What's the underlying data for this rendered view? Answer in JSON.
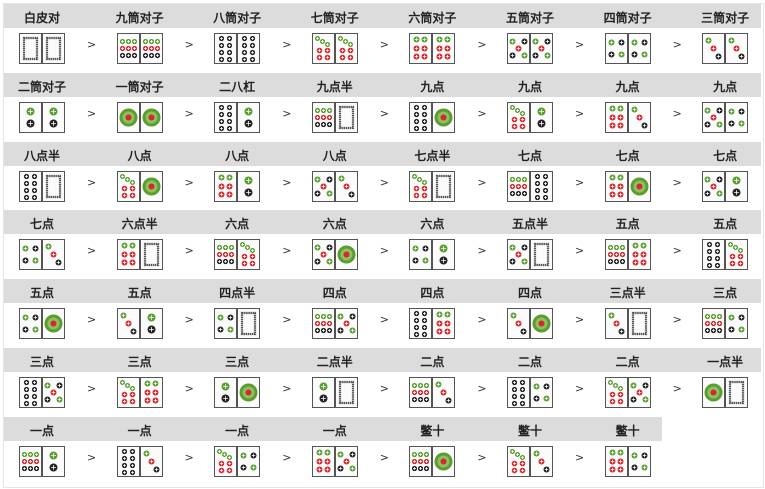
{
  "colors": {
    "green": "#5a9e2f",
    "red": "#d8262c",
    "black": "#222222",
    "header_bg": "#dcdcdc",
    "tile_border": "#555555"
  },
  "arrow": ">",
  "cells": [
    {
      "label": "白皮对",
      "tiles": [
        0,
        0
      ]
    },
    {
      "label": "九筒对子",
      "tiles": [
        9,
        9
      ]
    },
    {
      "label": "八筒对子",
      "tiles": [
        8,
        8
      ]
    },
    {
      "label": "七筒对子",
      "tiles": [
        7,
        7
      ]
    },
    {
      "label": "六筒对子",
      "tiles": [
        6,
        6
      ]
    },
    {
      "label": "五筒对子",
      "tiles": [
        5,
        5
      ]
    },
    {
      "label": "四筒对子",
      "tiles": [
        4,
        4
      ]
    },
    {
      "label": "三筒对子",
      "tiles": [
        3,
        3
      ]
    },
    {
      "label": "二筒对子",
      "tiles": [
        2,
        2
      ]
    },
    {
      "label": "一筒对子",
      "tiles": [
        1,
        1
      ]
    },
    {
      "label": "二八杠",
      "tiles": [
        8,
        2
      ]
    },
    {
      "label": "九点半",
      "tiles": [
        9,
        0
      ]
    },
    {
      "label": "九点",
      "tiles": [
        8,
        1
      ]
    },
    {
      "label": "九点",
      "tiles": [
        7,
        2
      ]
    },
    {
      "label": "九点",
      "tiles": [
        6,
        3
      ]
    },
    {
      "label": "九点",
      "tiles": [
        5,
        4
      ]
    },
    {
      "label": "八点半",
      "tiles": [
        8,
        0
      ]
    },
    {
      "label": "八点",
      "tiles": [
        7,
        1
      ]
    },
    {
      "label": "八点",
      "tiles": [
        6,
        2
      ]
    },
    {
      "label": "八点",
      "tiles": [
        5,
        3
      ]
    },
    {
      "label": "七点半",
      "tiles": [
        7,
        0
      ]
    },
    {
      "label": "七点",
      "tiles": [
        9,
        8
      ]
    },
    {
      "label": "七点",
      "tiles": [
        6,
        1
      ]
    },
    {
      "label": "七点",
      "tiles": [
        5,
        2
      ]
    },
    {
      "label": "七点",
      "tiles": [
        4,
        3
      ]
    },
    {
      "label": "六点半",
      "tiles": [
        6,
        0
      ]
    },
    {
      "label": "六点",
      "tiles": [
        9,
        7
      ]
    },
    {
      "label": "六点",
      "tiles": [
        5,
        1
      ]
    },
    {
      "label": "六点",
      "tiles": [
        4,
        2
      ]
    },
    {
      "label": "五点半",
      "tiles": [
        5,
        0
      ]
    },
    {
      "label": "五点",
      "tiles": [
        9,
        6
      ]
    },
    {
      "label": "五点",
      "tiles": [
        8,
        7
      ]
    },
    {
      "label": "五点",
      "tiles": [
        4,
        1
      ]
    },
    {
      "label": "五点",
      "tiles": [
        3,
        2
      ]
    },
    {
      "label": "四点半",
      "tiles": [
        4,
        0
      ]
    },
    {
      "label": "四点",
      "tiles": [
        9,
        5
      ]
    },
    {
      "label": "四点",
      "tiles": [
        8,
        6
      ]
    },
    {
      "label": "四点",
      "tiles": [
        3,
        1
      ]
    },
    {
      "label": "三点半",
      "tiles": [
        3,
        0
      ]
    },
    {
      "label": "三点",
      "tiles": [
        9,
        4
      ]
    },
    {
      "label": "三点",
      "tiles": [
        8,
        5
      ]
    },
    {
      "label": "三点",
      "tiles": [
        7,
        6
      ]
    },
    {
      "label": "三点",
      "tiles": [
        2,
        1
      ]
    },
    {
      "label": "二点半",
      "tiles": [
        2,
        0
      ]
    },
    {
      "label": "二点",
      "tiles": [
        9,
        3
      ]
    },
    {
      "label": "二点",
      "tiles": [
        8,
        4
      ]
    },
    {
      "label": "二点",
      "tiles": [
        7,
        5
      ]
    },
    {
      "label": "一点半",
      "tiles": [
        1,
        0
      ]
    },
    {
      "label": "一点",
      "tiles": [
        9,
        2
      ]
    },
    {
      "label": "一点",
      "tiles": [
        8,
        3
      ]
    },
    {
      "label": "一点",
      "tiles": [
        7,
        4
      ]
    },
    {
      "label": "一点",
      "tiles": [
        6,
        5
      ]
    },
    {
      "label": "鳖十",
      "tiles": [
        9,
        1
      ]
    },
    {
      "label": "鳖十",
      "tiles": [
        7,
        3
      ]
    },
    {
      "label": "鳖十",
      "tiles": [
        6,
        4
      ]
    }
  ]
}
